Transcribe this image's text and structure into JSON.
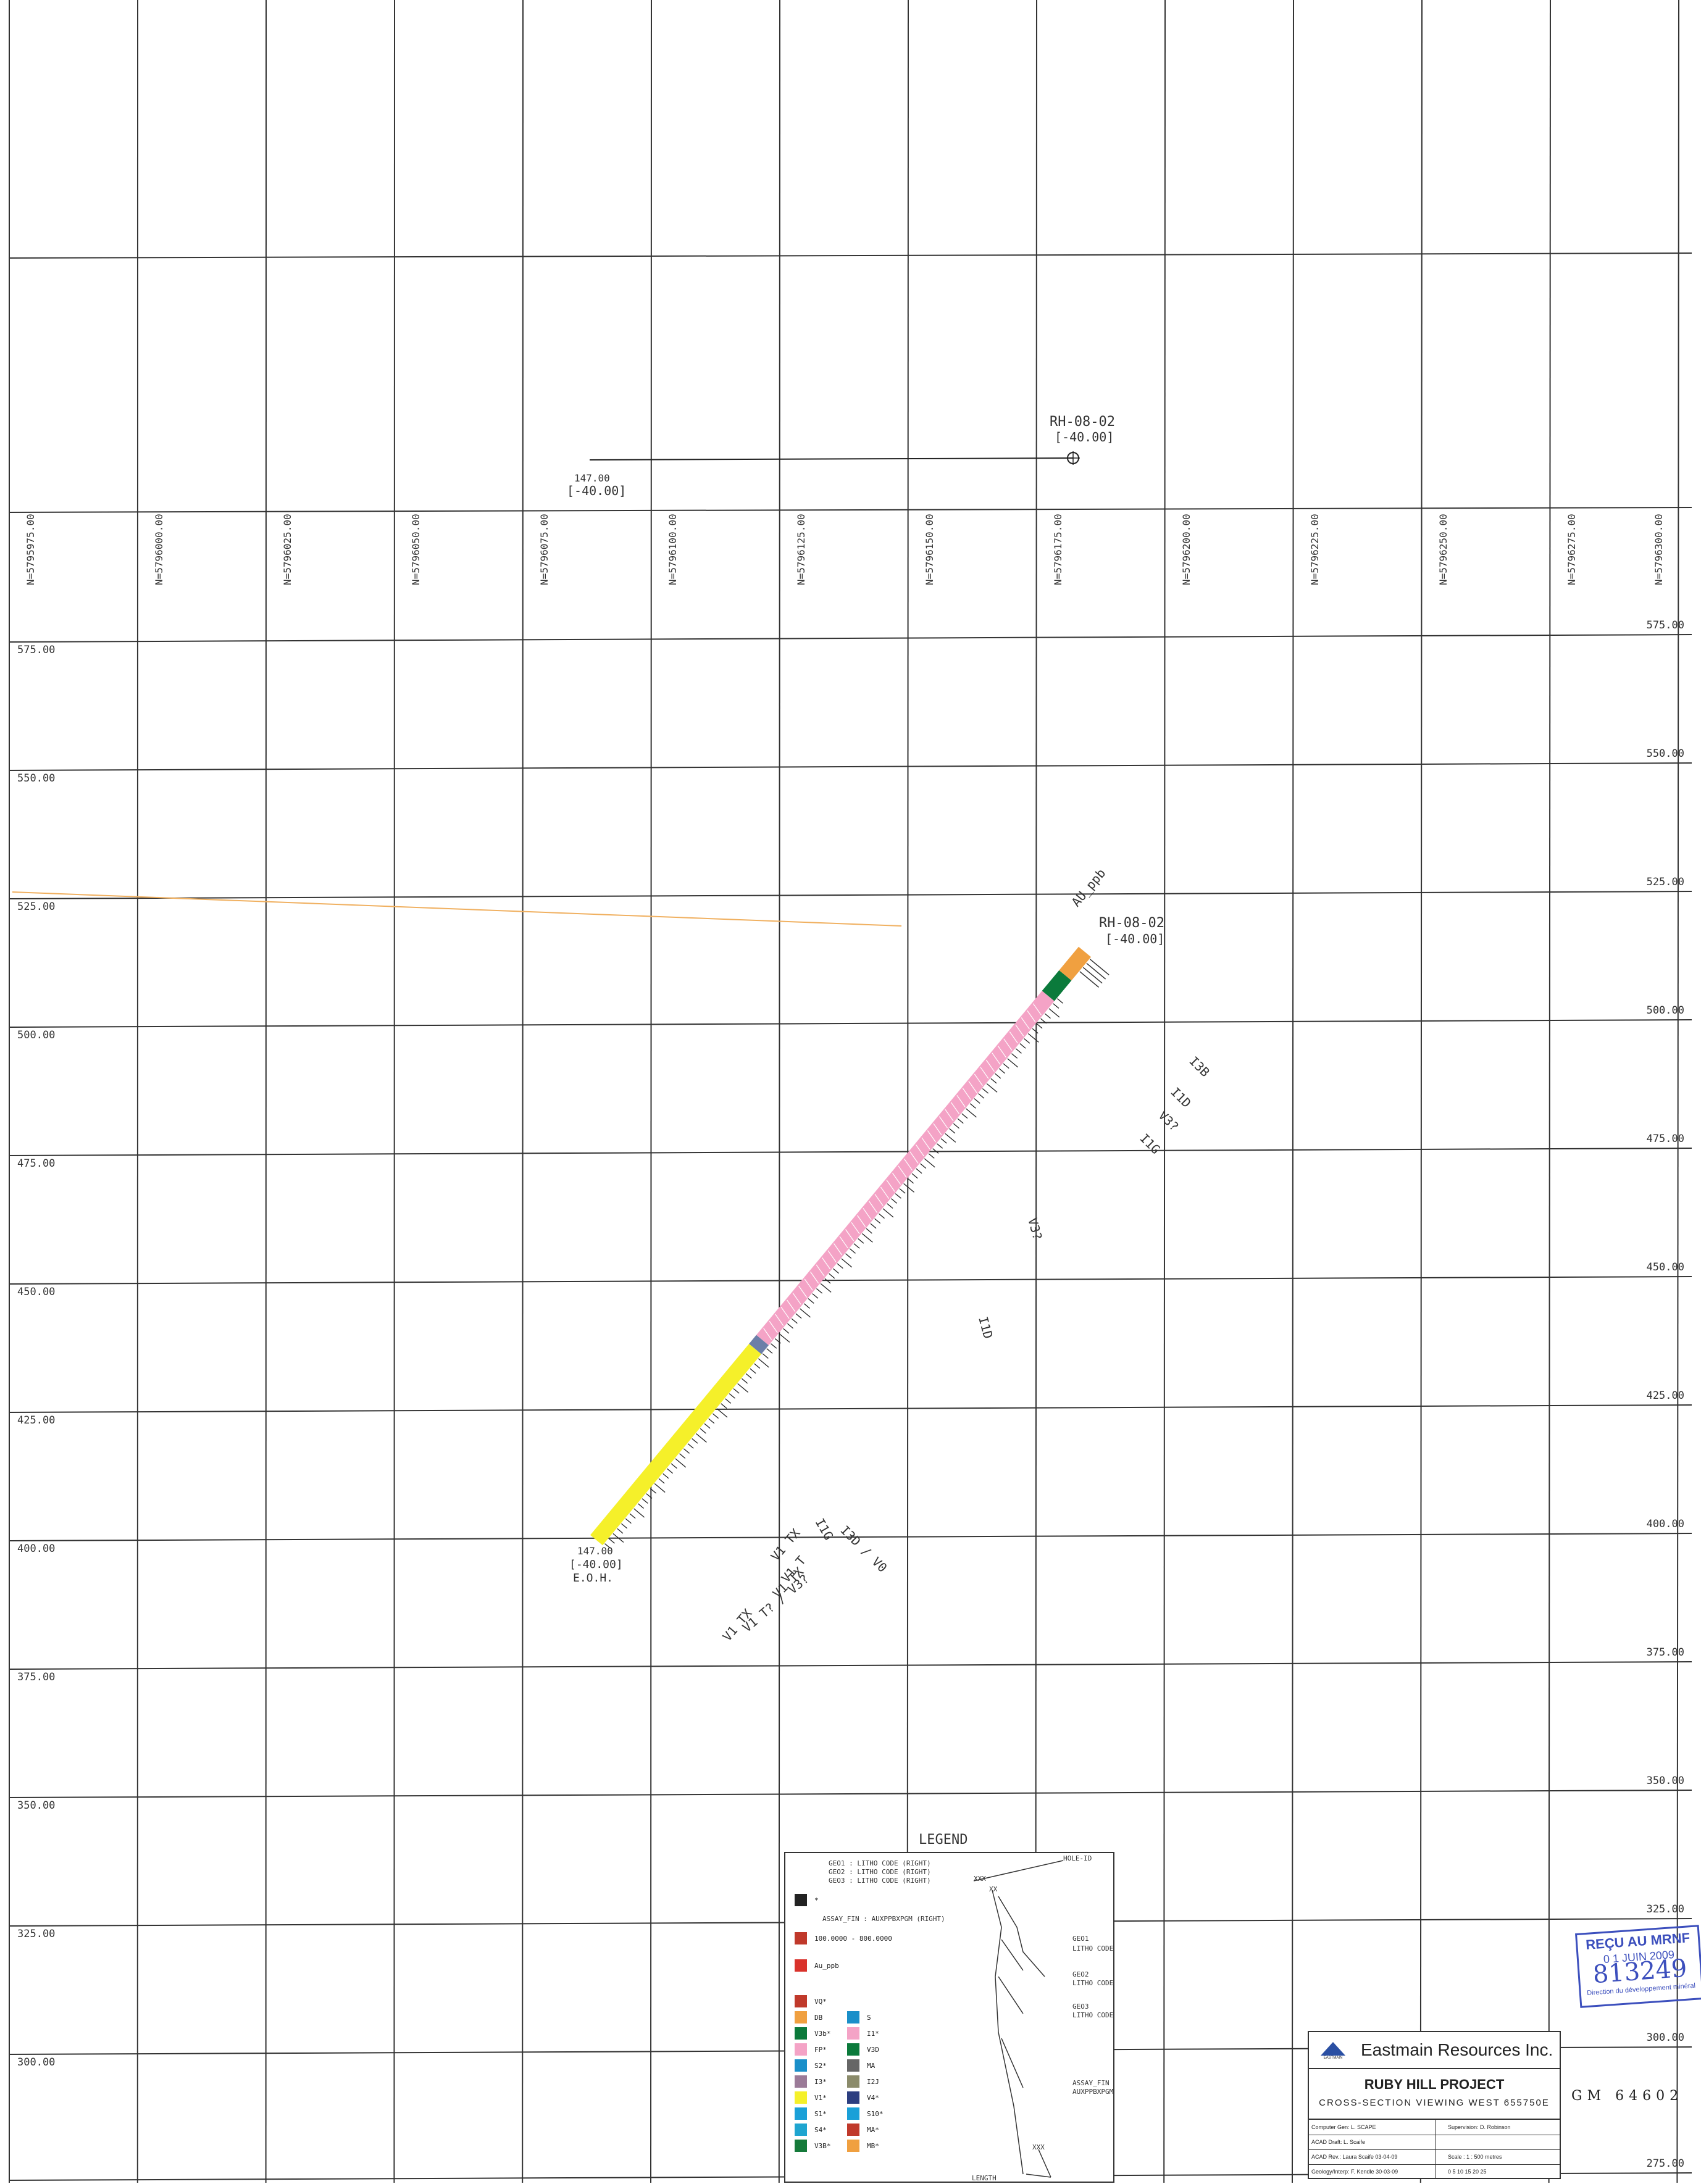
{
  "hole": {
    "id": "RH-08-02",
    "dip": "[-40.00]",
    "length": "147.00",
    "eoh": "E.O.H.",
    "assay_label": "AU_ppb"
  },
  "northings": [
    "N=5795975.00",
    "N=5796000.00",
    "N=5796025.00",
    "N=5796050.00",
    "N=5796075.00",
    "N=5796100.00",
    "N=5796125.00",
    "N=5796150.00",
    "N=5796175.00",
    "N=5796200.00",
    "N=5796225.00",
    "N=5796250.00",
    "N=5796275.00",
    "N=5796300.00"
  ],
  "elevations": [
    "575.00",
    "550.00",
    "525.00",
    "500.00",
    "475.00",
    "450.00",
    "425.00",
    "400.00",
    "375.00",
    "350.00",
    "325.00",
    "300.00",
    "275.00"
  ],
  "geo_annotations": [
    "I3B",
    "I1D",
    "V3?",
    "I1G",
    "V3?",
    "I1D",
    "I1G",
    "I3D / V0",
    "V1 TX",
    "V1 T",
    "V1 TX",
    "V1 T? / V3?",
    "V1 TX"
  ],
  "legend": {
    "title": "LEGEND",
    "geo_lines": [
      "GEO1 : LITHO CODE (RIGHT)",
      "GEO2 : LITHO CODE (RIGHT)",
      "GEO3 : LITHO CODE (RIGHT)"
    ],
    "star_label": "*",
    "assay_line": "ASSAY_FIN : AUXPPBXPGM (RIGHT)",
    "range_label": "100.0000  -  800.0000",
    "au_label": "Au_ppb",
    "codes_left": [
      {
        "code": "VQ*",
        "color": "#c0392b"
      },
      {
        "code": "DB",
        "color": "#f0a040"
      },
      {
        "code": "V3b*",
        "color": "#0b7a3b"
      },
      {
        "code": "FP*",
        "color": "#f4a3c6"
      },
      {
        "code": "S2*",
        "color": "#1a8fc9"
      },
      {
        "code": "I3*",
        "color": "#9b7b98"
      },
      {
        "code": "V1*",
        "color": "#f5f02a"
      },
      {
        "code": "S1*",
        "color": "#1aa0d8"
      },
      {
        "code": "S4*",
        "color": "#1fa5d0"
      },
      {
        "code": "V3B*",
        "color": "#157a3a"
      }
    ],
    "codes_right": [
      {
        "code": "S",
        "color": "#1a8fc9"
      },
      {
        "code": "I1*",
        "color": "#f4a3c6"
      },
      {
        "code": "V3D",
        "color": "#0b7a3b"
      },
      {
        "code": "MA",
        "color": "#666666"
      },
      {
        "code": "I2J",
        "color": "#8b8b6b"
      },
      {
        "code": "V4*",
        "color": "#2c3e80"
      },
      {
        "code": "S10*",
        "color": "#1aa0d8"
      },
      {
        "code": "MA*",
        "color": "#c0392b"
      },
      {
        "code": "MB*",
        "color": "#f0a040"
      }
    ],
    "schema_labels": [
      "HOLE-ID",
      "XXX",
      "XX",
      "GEO1",
      "LITHO CODE",
      "GEO2",
      "LITHO CODE",
      "GEO3",
      "LITHO CODE",
      "ASSAY_FIN",
      "AUXPPBXPGM",
      "XXX",
      "LENGTH"
    ]
  },
  "titleblock": {
    "company": "Eastmain Resources Inc.",
    "logo_text": "EASTMAIN",
    "project": "RUBY HILL PROJECT",
    "subtitle": "CROSS-SECTION VIEWING WEST  655750E",
    "rows": [
      {
        "label": "Computer Gen:  L. SCAPE",
        "value": "Supervision:   D. Robinson"
      },
      {
        "label": "ACAD Draft:  L. Scaife",
        "value": ""
      },
      {
        "label": "ACAD Rev.:  Laura Scaife  03-04-09",
        "value": "Scale :   1 : 500    metres"
      },
      {
        "label": "Geology/Interp:  F. Kendle  30-03-09",
        "value": "0   5   10   15   20   25"
      }
    ]
  },
  "gm_number": "GM 64602",
  "stamp": {
    "title": "REÇU AU MRNF",
    "date": "0 1 JUIN 2009",
    "number": "813249",
    "footer": "Direction du développement minéral"
  }
}
